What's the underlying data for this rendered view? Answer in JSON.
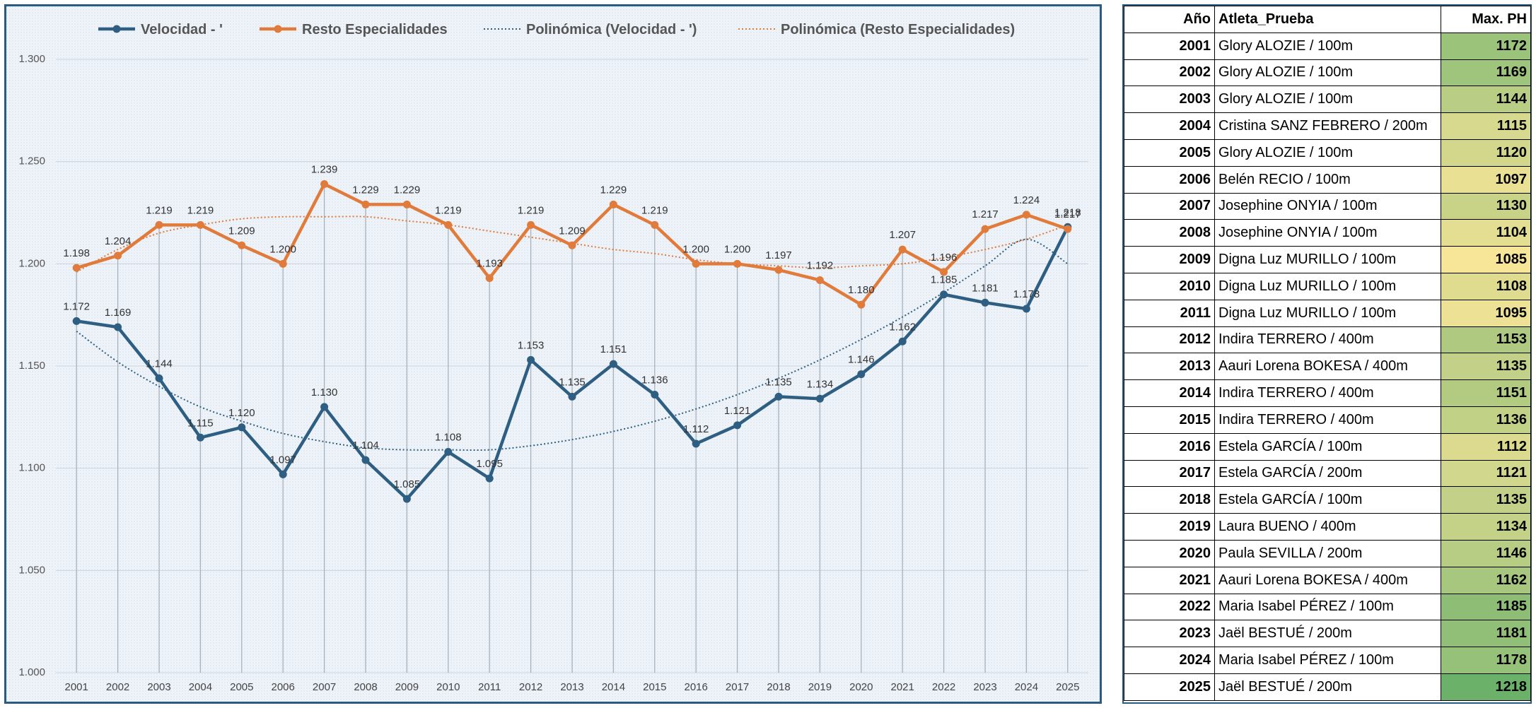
{
  "chart_data": {
    "type": "line",
    "categories": [
      "2001",
      "2002",
      "2003",
      "2004",
      "2005",
      "2006",
      "2007",
      "2008",
      "2009",
      "2010",
      "2011",
      "2012",
      "2013",
      "2014",
      "2015",
      "2016",
      "2017",
      "2018",
      "2019",
      "2020",
      "2021",
      "2022",
      "2023",
      "2024",
      "2025"
    ],
    "ylim": [
      1000,
      1300
    ],
    "yticks": [
      1000,
      1050,
      1100,
      1150,
      1200,
      1250,
      1300
    ],
    "ytick_labels": [
      "1.000",
      "1.050",
      "1.100",
      "1.150",
      "1.200",
      "1.250",
      "1.300"
    ],
    "legend_position": "top",
    "grid": true,
    "series": [
      {
        "name": "Velocidad - '",
        "color": "#2e5f82",
        "values": [
          1172,
          1169,
          1144,
          1115,
          1120,
          1097,
          1130,
          1104,
          1085,
          1108,
          1095,
          1153,
          1135,
          1151,
          1136,
          1112,
          1121,
          1135,
          1134,
          1146,
          1162,
          1185,
          1181,
          1178,
          1218
        ],
        "labels": [
          "1.172",
          "1.169",
          "1.144",
          "1.115",
          "1.120",
          "1.097",
          "1.130",
          "1.104",
          "1.085",
          "1.108",
          "1.095",
          "1.153",
          "1.135",
          "1.151",
          "1.136",
          "1.112",
          "1.121",
          "1.135",
          "1.134",
          "1.146",
          "1.162",
          "1.185",
          "1.181",
          "1.178",
          "1.218"
        ]
      },
      {
        "name": "Resto Especialidades",
        "color": "#e07b3c",
        "values": [
          1198,
          1204,
          1219,
          1219,
          1209,
          1200,
          1239,
          1229,
          1229,
          1219,
          1193,
          1219,
          1209,
          1229,
          1219,
          1200,
          1200,
          1197,
          1192,
          1180,
          1207,
          1196,
          1217,
          1224,
          1217
        ],
        "labels": [
          "1.198",
          "1.204",
          "1.219",
          "1.219",
          "1.209",
          "1.200",
          "1.239",
          "1.229",
          "1.229",
          "1.219",
          "1.193",
          "1.219",
          "1.209",
          "1.229",
          "1.219",
          "1.200",
          "1.200",
          "1.197",
          "1.192",
          "1.180",
          "1.207",
          "1.196",
          "1.217",
          "1.224",
          "1.217"
        ]
      }
    ],
    "trendlines": [
      {
        "name": "Polinómica (Velocidad - ')",
        "color": "#2e5f82",
        "values": [
          1167,
          1152,
          1140,
          1130,
          1123,
          1117,
          1113,
          1110,
          1109,
          1109,
          1109,
          1111,
          1114,
          1118,
          1123,
          1129,
          1136,
          1144,
          1153,
          1163,
          1174,
          1186,
          1199,
          1212,
          1200
        ]
      },
      {
        "name": "Polinómica (Resto Especialidades)",
        "color": "#e07b3c",
        "values": [
          1196,
          1207,
          1215,
          1219,
          1222,
          1223,
          1223,
          1223,
          1221,
          1219,
          1216,
          1213,
          1210,
          1207,
          1205,
          1202,
          1200,
          1199,
          1198,
          1199,
          1200,
          1203,
          1207,
          1212,
          1219
        ]
      }
    ]
  },
  "table": {
    "headers": {
      "year": "Año",
      "athlete": "Atleta_Prueba",
      "ph": "Max. PH"
    },
    "rows": [
      {
        "year": "2001",
        "athlete": "Glory ALOZIE / 100m",
        "ph": "1172"
      },
      {
        "year": "2002",
        "athlete": "Glory ALOZIE / 100m",
        "ph": "1169"
      },
      {
        "year": "2003",
        "athlete": "Glory ALOZIE / 100m",
        "ph": "1144"
      },
      {
        "year": "2004",
        "athlete": "Cristina SANZ FEBRERO / 200m",
        "ph": "1115"
      },
      {
        "year": "2005",
        "athlete": "Glory ALOZIE / 100m",
        "ph": "1120"
      },
      {
        "year": "2006",
        "athlete": "Belén RECIO / 100m",
        "ph": "1097"
      },
      {
        "year": "2007",
        "athlete": "Josephine ONYIA / 100m",
        "ph": "1130"
      },
      {
        "year": "2008",
        "athlete": "Josephine ONYIA / 100m",
        "ph": "1104"
      },
      {
        "year": "2009",
        "athlete": "Digna Luz MURILLO / 100m",
        "ph": "1085"
      },
      {
        "year": "2010",
        "athlete": "Digna Luz MURILLO / 100m",
        "ph": "1108"
      },
      {
        "year": "2011",
        "athlete": "Digna Luz MURILLO / 100m",
        "ph": "1095"
      },
      {
        "year": "2012",
        "athlete": "Indira TERRERO / 400m",
        "ph": "1153"
      },
      {
        "year": "2013",
        "athlete": "Aauri Lorena BOKESA / 400m",
        "ph": "1135"
      },
      {
        "year": "2014",
        "athlete": "Indira TERRERO / 400m",
        "ph": "1151"
      },
      {
        "year": "2015",
        "athlete": "Indira TERRERO / 400m",
        "ph": "1136"
      },
      {
        "year": "2016",
        "athlete": "Estela GARCÍA / 100m",
        "ph": "1112"
      },
      {
        "year": "2017",
        "athlete": "Estela GARCÍA / 200m",
        "ph": "1121"
      },
      {
        "year": "2018",
        "athlete": "Estela GARCÍA / 100m",
        "ph": "1135"
      },
      {
        "year": "2019",
        "athlete": "Laura BUENO / 400m",
        "ph": "1134"
      },
      {
        "year": "2020",
        "athlete": "Paula SEVILLA / 200m",
        "ph": "1146"
      },
      {
        "year": "2021",
        "athlete": "Aauri Lorena BOKESA / 400m",
        "ph": "1162"
      },
      {
        "year": "2022",
        "athlete": "Maria Isabel PÉREZ / 100m",
        "ph": "1185"
      },
      {
        "year": "2023",
        "athlete": "Jaël BESTUÉ / 200m",
        "ph": "1181"
      },
      {
        "year": "2024",
        "athlete": "Maria Isabel PÉREZ / 100m",
        "ph": "1178"
      },
      {
        "year": "2025",
        "athlete": "Jaël BESTUÉ / 200m",
        "ph": "1218"
      }
    ],
    "colors": {
      "low": "#f7e598",
      "high": "#6bb16a"
    }
  }
}
